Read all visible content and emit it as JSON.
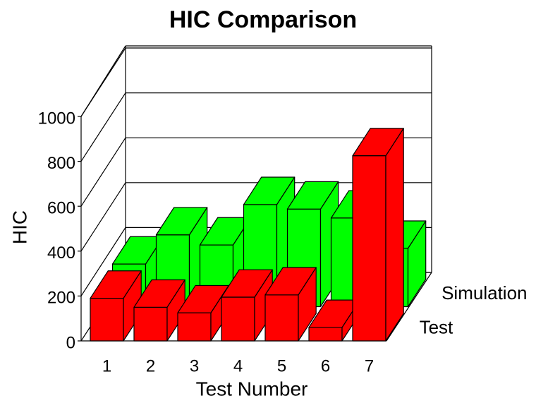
{
  "chart_data": {
    "type": "bar3d",
    "title": "HIC Comparison",
    "x_label": "Test Number",
    "y_label": "HIC",
    "categories": [
      "1",
      "2",
      "3",
      "4",
      "5",
      "6",
      "7"
    ],
    "series": [
      {
        "name": "Test",
        "color": "#ff0000",
        "values": [
          190,
          150,
          125,
          195,
          205,
          60,
          825
        ]
      },
      {
        "name": "Simulation",
        "color": "#00ff00",
        "values": [
          190,
          320,
          275,
          455,
          435,
          395,
          260
        ]
      }
    ],
    "ylim": [
      0,
      1000
    ],
    "yticks": [
      0,
      200,
      400,
      600,
      800,
      1000
    ],
    "grid": true
  }
}
